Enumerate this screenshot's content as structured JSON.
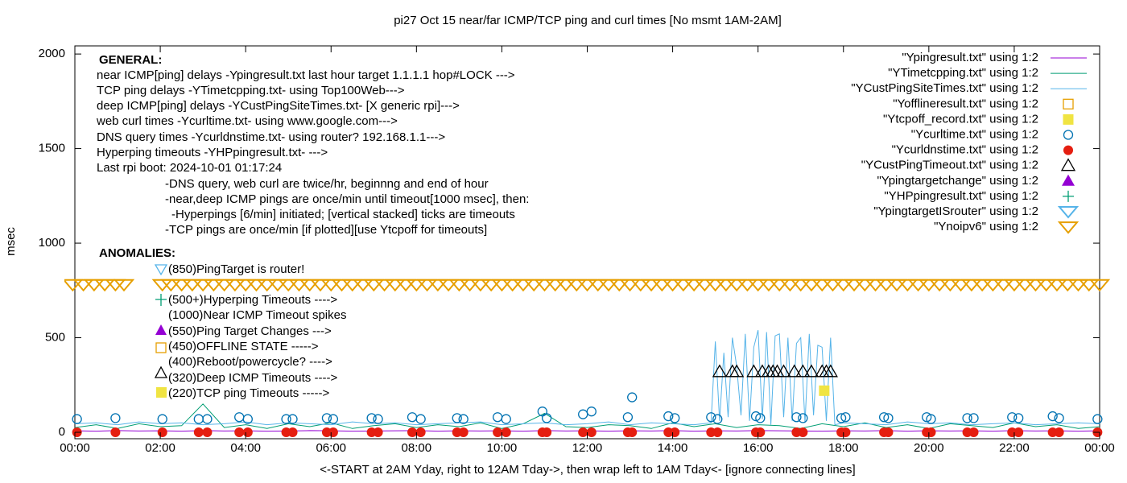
{
  "chart_data": {
    "type": "line",
    "title": "pi27 Oct 15  near/far ICMP/TCP ping and curl times [No msmt 1AM-2AM]",
    "xlabel": "<-START at 2AM Yday, right to 12AM Tday->, then wrap left to 1AM Tday<- [ignore connecting lines]",
    "ylabel": "msec",
    "xlim": [
      0,
      24
    ],
    "ylim": [
      -34,
      2043
    ],
    "xticks": [
      {
        "value": 0,
        "label": "00:00"
      },
      {
        "value": 2,
        "label": "02:00"
      },
      {
        "value": 4,
        "label": "04:00"
      },
      {
        "value": 6,
        "label": "06:00"
      },
      {
        "value": 8,
        "label": "08:00"
      },
      {
        "value": 10,
        "label": "10:00"
      },
      {
        "value": 12,
        "label": "12:00"
      },
      {
        "value": 14,
        "label": "14:00"
      },
      {
        "value": 16,
        "label": "16:00"
      },
      {
        "value": 18,
        "label": "18:00"
      },
      {
        "value": 20,
        "label": "20:00"
      },
      {
        "value": 22,
        "label": "22:00"
      },
      {
        "value": 24,
        "label": "00:00"
      }
    ],
    "yticks": [
      0,
      500,
      1000,
      1500,
      2000
    ],
    "legend": "top-right",
    "annotations": [
      "GENERAL:",
      "near ICMP[ping] delays -Ypingresult.txt last hour target 1.1.1.1 hop#LOCK --->",
      "TCP ping delays -YTimetcpping.txt- using Top100Web--->",
      "deep ICMP[ping] delays -YCustPingSiteTimes.txt- [X generic rpi]--->",
      "web curl times -Ycurltime.txt- using www.google.com--->",
      "DNS query times -Ycurldnstime.txt- using router? 192.168.1.1--->",
      "Hyperping timeouts -YHPpingresult.txt- --->",
      "Last rpi boot: 2024-10-01 01:17:24",
      "-DNS query, web curl are twice/hr, beginnng and end of hour",
      "-near,deep ICMP pings are once/min until timeout[1000 msec], then:",
      "-Hyperpings [6/min] initiated; [vertical stacked] ticks are timeouts",
      "-TCP pings are once/min [if plotted][use Ytcpoff for timeouts]",
      "ANOMALIES:",
      "(850)PingTarget is router!",
      "(500+)Hyperping Timeouts ---->",
      "(1000)Near ICMP Timeout spikes",
      "(550)Ping Target Changes --->",
      "(450)OFFLINE STATE ----->",
      "(400)Reboot/powercycle? ---->",
      "(320)Deep ICMP Timeouts ---->",
      "(220)TCP ping Timeouts ----->"
    ],
    "series": [
      {
        "name": "\"Ypingresult.txt\" using 1:2",
        "color": "#9400d3",
        "marker": "line",
        "x": [
          0,
          0.5,
          1,
          1.5,
          2,
          2.5,
          3,
          3.5,
          4,
          4.5,
          5,
          5.5,
          6,
          6.5,
          7,
          7.5,
          8,
          8.5,
          9,
          9.5,
          10,
          10.5,
          11,
          11.5,
          12,
          12.5,
          13,
          13.5,
          14,
          14.5,
          15,
          15.5,
          16,
          16.5,
          17,
          17.5,
          18,
          18.5,
          19,
          19.5,
          20,
          20.5,
          21,
          21.5,
          22,
          22.5,
          23,
          23.5,
          24
        ],
        "values": [
          8,
          6,
          9,
          7,
          8,
          6,
          9,
          7,
          8,
          6,
          7,
          9,
          8,
          6,
          7,
          8,
          9,
          6,
          8,
          7,
          8,
          6,
          9,
          7,
          8,
          6,
          8,
          7,
          9,
          6,
          8,
          7,
          9,
          8,
          7,
          6,
          8,
          7,
          9,
          6,
          8,
          7,
          8,
          6,
          9,
          7,
          8,
          6,
          8
        ]
      },
      {
        "name": "\"YTimetcpping.txt\" using 1:2",
        "color": "#009e73",
        "marker": "line",
        "x": [
          0,
          0.5,
          1,
          1.5,
          2,
          2.5,
          3,
          3.5,
          4,
          4.5,
          5,
          5.5,
          6,
          6.5,
          7,
          7.5,
          8,
          8.5,
          9,
          9.5,
          10,
          10.5,
          11,
          11.5,
          12,
          12.5,
          13,
          13.5,
          14,
          14.5,
          15,
          15.5,
          16,
          16.5,
          17,
          17.5,
          18,
          18.5,
          19,
          19.5,
          20,
          20.5,
          21,
          21.5,
          22,
          22.5,
          23,
          23.5,
          24
        ],
        "values": [
          25,
          40,
          20,
          45,
          30,
          35,
          150,
          25,
          40,
          20,
          45,
          30,
          50,
          20,
          35,
          45,
          25,
          40,
          30,
          50,
          20,
          45,
          100,
          30,
          25,
          40,
          35,
          20,
          50,
          30,
          45,
          25,
          40,
          35,
          20,
          45,
          30,
          50,
          25,
          40,
          20,
          45,
          35,
          25,
          50,
          30,
          40,
          20,
          30
        ]
      },
      {
        "name": "\"YCustPingSiteTimes.txt\" using 1:2",
        "color": "#56b4e9",
        "marker": "line",
        "x": [
          0,
          0.5,
          1,
          1.5,
          2,
          2.5,
          3,
          3.5,
          4,
          4.5,
          5,
          5.5,
          6,
          6.5,
          7,
          7.5,
          8,
          8.5,
          9,
          9.5,
          10,
          10.5,
          11,
          11.5,
          12,
          12.5,
          13,
          13.5,
          14,
          14.5,
          14.9,
          15,
          15.1,
          15.2,
          15.3,
          15.4,
          15.5,
          15.6,
          15.7,
          15.8,
          15.9,
          16,
          16.1,
          16.2,
          16.3,
          16.4,
          16.5,
          16.6,
          16.7,
          16.8,
          16.9,
          17,
          17.1,
          17.2,
          17.3,
          17.4,
          17.5,
          17.6,
          17.7,
          17.8,
          18,
          18.5,
          19,
          19.5,
          20,
          20.5,
          21,
          21.5,
          22,
          22.5,
          23,
          23.5,
          24
        ],
        "values": [
          45,
          50,
          40,
          55,
          45,
          50,
          40,
          45,
          55,
          40,
          50,
          45,
          40,
          55,
          45,
          50,
          40,
          45,
          50,
          55,
          40,
          45,
          50,
          40,
          45,
          55,
          40,
          50,
          45,
          40,
          50,
          480,
          60,
          420,
          80,
          500,
          350,
          90,
          520,
          60,
          450,
          540,
          70,
          530,
          40,
          510,
          520,
          80,
          500,
          60,
          470,
          500,
          50,
          520,
          90,
          460,
          450,
          60,
          500,
          40,
          50,
          45,
          40,
          55,
          45,
          50,
          40,
          45,
          50,
          40,
          45,
          50,
          45
        ]
      },
      {
        "name": "\"Yofflineresult.txt\" using 1:2",
        "color": "#e69f00",
        "marker": "square-open",
        "x": [],
        "values": []
      },
      {
        "name": "\"Ytcpoff_record.txt\" using 1:2",
        "color": "#f0e442",
        "marker": "square-filled",
        "x": [
          17.55
        ],
        "values": [
          220
        ]
      },
      {
        "name": "\"Ycurltime.txt\" using 1:2",
        "color": "#0072b2",
        "marker": "circle-open",
        "x": [
          0.05,
          0.95,
          2.05,
          2.9,
          3.1,
          3.85,
          4.05,
          4.95,
          5.1,
          5.9,
          6.05,
          6.95,
          7.1,
          7.9,
          8.1,
          8.95,
          9.1,
          9.9,
          10.1,
          10.95,
          11.05,
          11.9,
          12.1,
          12.95,
          13.05,
          13.9,
          14.05,
          14.9,
          15.05,
          15.95,
          16.05,
          16.9,
          17.05,
          17.95,
          18.05,
          18.95,
          19.05,
          19.95,
          20.05,
          20.9,
          21.05,
          21.95,
          22.1,
          22.9,
          23.05,
          23.95
        ],
        "values": [
          70,
          75,
          70,
          70,
          70,
          80,
          70,
          70,
          70,
          75,
          70,
          75,
          70,
          80,
          70,
          75,
          70,
          80,
          70,
          110,
          75,
          95,
          110,
          80,
          185,
          85,
          75,
          80,
          70,
          85,
          75,
          80,
          75,
          75,
          80,
          80,
          75,
          80,
          70,
          75,
          75,
          80,
          75,
          85,
          75,
          70
        ]
      },
      {
        "name": "\"Ycurldnstime.txt\" using 1:2",
        "color": "#e51e10",
        "marker": "circle-filled",
        "x": [
          0.05,
          0.95,
          2.05,
          2.9,
          3.1,
          3.85,
          4.05,
          4.95,
          5.1,
          5.9,
          6.05,
          6.95,
          7.1,
          7.9,
          8.1,
          8.95,
          9.1,
          9.9,
          10.1,
          10.95,
          11.05,
          11.9,
          12.1,
          12.95,
          13.05,
          13.9,
          14.05,
          14.9,
          15.05,
          15.95,
          16.05,
          16.9,
          17.05,
          17.95,
          18.05,
          18.95,
          19.05,
          19.95,
          20.05,
          20.9,
          21.05,
          21.95,
          22.1,
          22.9,
          23.05,
          23.95
        ],
        "values": [
          0,
          0,
          0,
          0,
          0,
          0,
          0,
          0,
          0,
          0,
          0,
          0,
          0,
          0,
          0,
          0,
          0,
          0,
          0,
          0,
          0,
          0,
          0,
          0,
          0,
          0,
          0,
          0,
          0,
          0,
          0,
          0,
          0,
          0,
          0,
          0,
          0,
          0,
          0,
          0,
          0,
          0,
          0,
          0,
          0,
          0
        ]
      },
      {
        "name": "\"YCustPingTimeout.txt\" using 1:2",
        "color": "#000000",
        "marker": "triangle-open",
        "x": [
          15.1,
          15.4,
          15.5,
          15.9,
          16.1,
          16.25,
          16.35,
          16.45,
          16.6,
          16.85,
          17.05,
          17.25,
          17.5,
          17.6,
          17.7
        ],
        "values": [
          320,
          320,
          320,
          320,
          320,
          320,
          320,
          320,
          320,
          320,
          320,
          320,
          320,
          320,
          320
        ]
      },
      {
        "name": "\"Ypingtargetchange\" using 1:2",
        "color": "#9400d3",
        "marker": "triangle-filled",
        "x": [],
        "values": []
      },
      {
        "name": "\"YHPpingresult.txt\" using 1:2",
        "color": "#009e73",
        "marker": "plus",
        "x": [],
        "values": []
      },
      {
        "name": "\"YpingtargetISrouter\" using 1:2",
        "color": "#56b4e9",
        "marker": "triangle-down-open",
        "x": [],
        "values": []
      },
      {
        "name": "\"Ynoipv6\" using 1:2",
        "color": "#e69f00",
        "marker": "triangle-down-open",
        "x": [
          -0.05,
          0.2,
          0.45,
          0.7,
          0.95,
          1.15,
          2.05,
          2.25,
          2.5,
          2.75,
          3,
          3.25,
          3.5,
          3.75,
          4,
          4.25,
          4.5,
          4.75,
          5,
          5.25,
          5.5,
          5.75,
          6,
          6.25,
          6.5,
          6.75,
          7,
          7.25,
          7.5,
          7.75,
          8,
          8.25,
          8.5,
          8.75,
          9,
          9.25,
          9.5,
          9.75,
          10,
          10.25,
          10.5,
          10.75,
          11,
          11.25,
          11.5,
          11.75,
          12,
          12.25,
          12.5,
          12.75,
          13,
          13.25,
          13.5,
          13.75,
          14,
          14.25,
          14.5,
          14.75,
          15,
          15.25,
          15.5,
          15.75,
          16,
          16.25,
          16.5,
          16.75,
          17,
          17.25,
          17.5,
          17.75,
          18,
          18.25,
          18.5,
          18.75,
          19,
          19.25,
          19.5,
          19.75,
          20,
          20.25,
          20.5,
          20.75,
          21,
          21.25,
          21.5,
          21.75,
          22,
          22.25,
          22.5,
          22.75,
          23,
          23.25,
          23.5,
          23.75,
          24
        ],
        "values": [
          780,
          780,
          780,
          780,
          780,
          780,
          780,
          780,
          780,
          780,
          780,
          780,
          780,
          780,
          780,
          780,
          780,
          780,
          780,
          780,
          780,
          780,
          780,
          780,
          780,
          780,
          780,
          780,
          780,
          780,
          780,
          780,
          780,
          780,
          780,
          780,
          780,
          780,
          780,
          780,
          780,
          780,
          780,
          780,
          780,
          780,
          780,
          780,
          780,
          780,
          780,
          780,
          780,
          780,
          780,
          780,
          780,
          780,
          780,
          780,
          780,
          780,
          780,
          780,
          780,
          780,
          780,
          780,
          780,
          780,
          780,
          780,
          780,
          780,
          780,
          780,
          780,
          780,
          780,
          780,
          780,
          780,
          780,
          780,
          780,
          780,
          780,
          780,
          780,
          780,
          780,
          780,
          780,
          780,
          780
        ]
      }
    ]
  }
}
